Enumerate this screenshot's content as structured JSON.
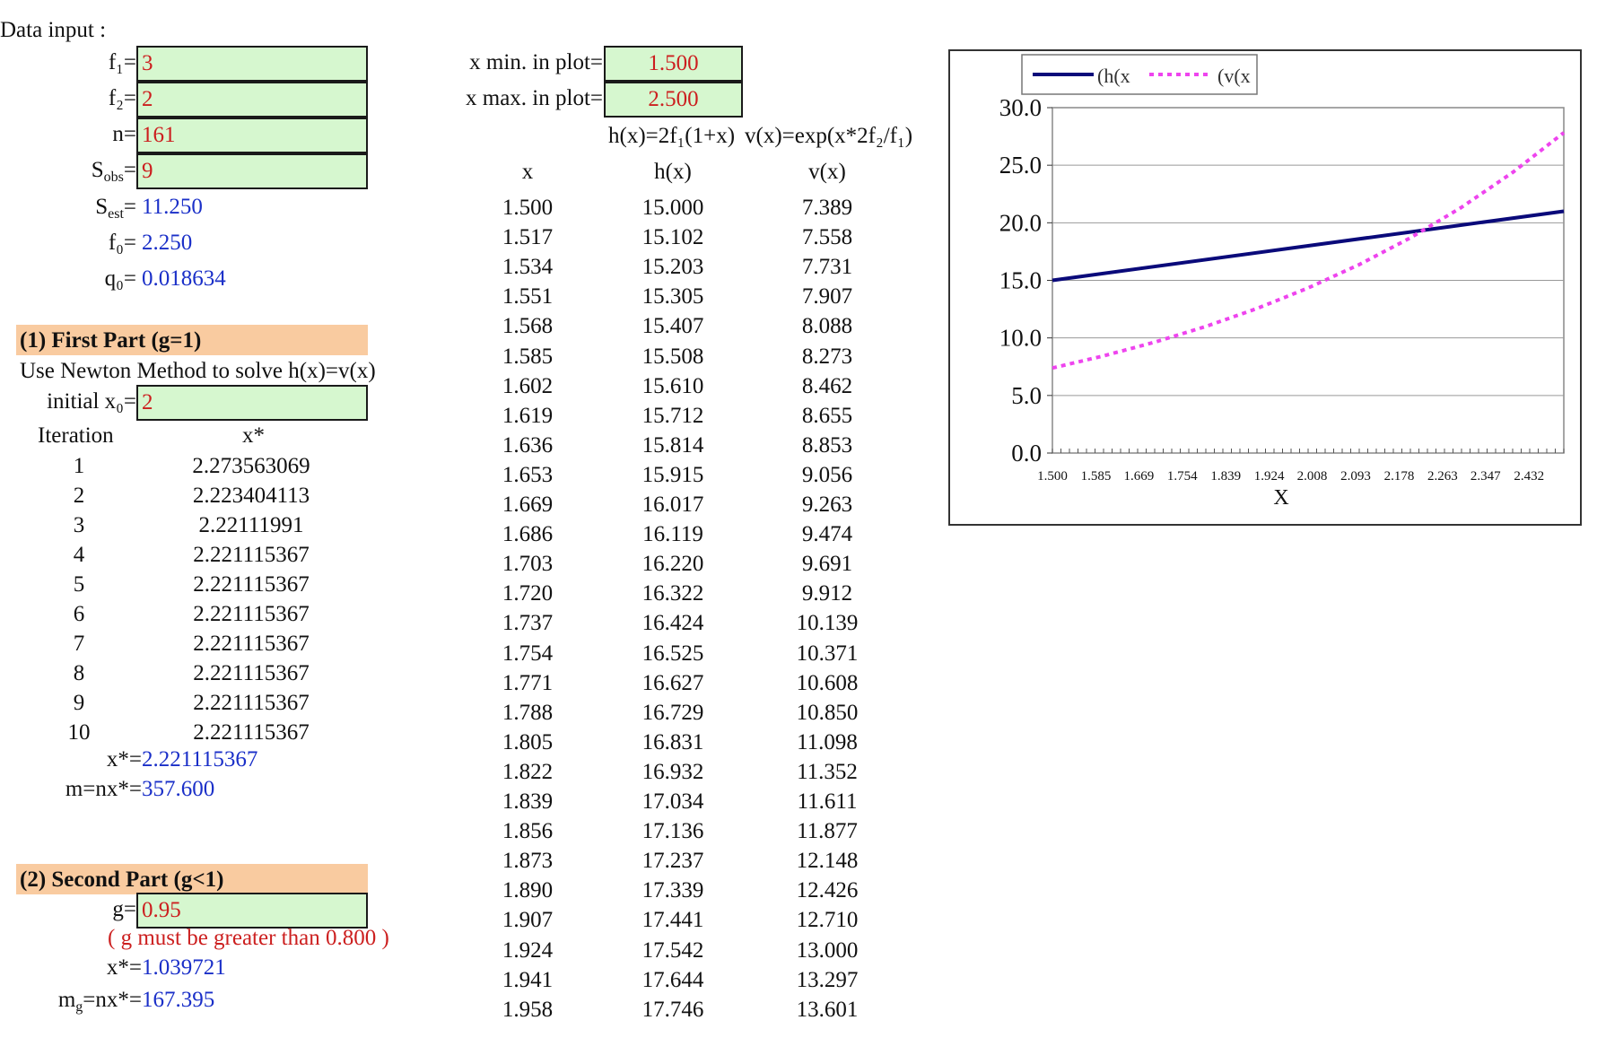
{
  "data_input": {
    "title": "Data input :",
    "f1_label": "f₁=",
    "f1_value": "3",
    "f2_label": "f₂=",
    "f2_value": "2",
    "n_label": "n=",
    "n_value": "161",
    "sobs_label_main": "S",
    "sobs_label_sub": "obs",
    "sobs_value": "9",
    "sest_label_main": "S",
    "sest_label_sub": "est",
    "sest_value": "11.250",
    "f0_label": "f₀=",
    "f0_value": "2.250",
    "q0_label": "q₀=",
    "q0_value": "0.018634"
  },
  "plot_range": {
    "xmin_label": "x min. in plot=",
    "xmin_value": "1.500",
    "xmax_label": "x max. in plot=",
    "xmax_value": "2.500",
    "formula_h": "h(x)=2f₁(1+x)",
    "formula_v": "v(x)=exp(x*2f₂/f₁)"
  },
  "part1": {
    "header": "(1) First Part (g=1)",
    "instruction": "Use Newton Method to solve h(x)=v(x)",
    "initial_label": "initial x₀=",
    "initial_value": "2",
    "col_iteration": "Iteration",
    "col_xstar": "x*",
    "iterations": [
      [
        "1",
        "2.273563069"
      ],
      [
        "2",
        "2.223404113"
      ],
      [
        "3",
        "2.22111991"
      ],
      [
        "4",
        "2.221115367"
      ],
      [
        "5",
        "2.221115367"
      ],
      [
        "6",
        "2.221115367"
      ],
      [
        "7",
        "2.221115367"
      ],
      [
        "8",
        "2.221115367"
      ],
      [
        "9",
        "2.221115367"
      ],
      [
        "10",
        "2.221115367"
      ]
    ],
    "xstar_label": "x*=",
    "xstar_value": "2.221115367",
    "m_label": "m=nx*=",
    "m_value": "357.600"
  },
  "part2": {
    "header": "(2) Second Part (g<1)",
    "g_label": "g=",
    "g_value": "0.95",
    "warning": "( g must be greater than 0.800 )",
    "xstar_label": "x*=",
    "xstar_value": "1.039721",
    "mg_label": "m",
    "mg_sub": "g",
    "mg_label_rest": "=nx*=",
    "mg_value": "167.395"
  },
  "table": {
    "headers": [
      "x",
      "h(x)",
      "v(x)"
    ],
    "rows": [
      [
        "1.500",
        "15.000",
        "7.389"
      ],
      [
        "1.517",
        "15.102",
        "7.558"
      ],
      [
        "1.534",
        "15.203",
        "7.731"
      ],
      [
        "1.551",
        "15.305",
        "7.907"
      ],
      [
        "1.568",
        "15.407",
        "8.088"
      ],
      [
        "1.585",
        "15.508",
        "8.273"
      ],
      [
        "1.602",
        "15.610",
        "8.462"
      ],
      [
        "1.619",
        "15.712",
        "8.655"
      ],
      [
        "1.636",
        "15.814",
        "8.853"
      ],
      [
        "1.653",
        "15.915",
        "9.056"
      ],
      [
        "1.669",
        "16.017",
        "9.263"
      ],
      [
        "1.686",
        "16.119",
        "9.474"
      ],
      [
        "1.703",
        "16.220",
        "9.691"
      ],
      [
        "1.720",
        "16.322",
        "9.912"
      ],
      [
        "1.737",
        "16.424",
        "10.139"
      ],
      [
        "1.754",
        "16.525",
        "10.371"
      ],
      [
        "1.771",
        "16.627",
        "10.608"
      ],
      [
        "1.788",
        "16.729",
        "10.850"
      ],
      [
        "1.805",
        "16.831",
        "11.098"
      ],
      [
        "1.822",
        "16.932",
        "11.352"
      ],
      [
        "1.839",
        "17.034",
        "11.611"
      ],
      [
        "1.856",
        "17.136",
        "11.877"
      ],
      [
        "1.873",
        "17.237",
        "12.148"
      ],
      [
        "1.890",
        "17.339",
        "12.426"
      ],
      [
        "1.907",
        "17.441",
        "12.710"
      ],
      [
        "1.924",
        "17.542",
        "13.000"
      ],
      [
        "1.941",
        "17.644",
        "13.297"
      ],
      [
        "1.958",
        "17.746",
        "13.601"
      ]
    ]
  },
  "chart_data": {
    "type": "line",
    "xlabel": "X",
    "ylabel": "",
    "ylim": [
      0,
      30
    ],
    "yticks": [
      "0.0",
      "5.0",
      "10.0",
      "15.0",
      "20.0",
      "25.0",
      "30.0"
    ],
    "xticks": [
      "1.500",
      "1.585",
      "1.669",
      "1.754",
      "1.839",
      "1.924",
      "2.008",
      "2.093",
      "2.178",
      "2.263",
      "2.347",
      "2.432"
    ],
    "xlim": [
      1.5,
      2.5
    ],
    "grid": "horizontal",
    "legend_position": "top",
    "series": [
      {
        "name": "(h(x",
        "color": "#0a0a7a",
        "style": "solid",
        "x": [
          1.5,
          2.5
        ],
        "values": [
          15.0,
          21.0
        ]
      },
      {
        "name": "(v(x",
        "color": "#ee44ee",
        "style": "dashed",
        "x": [
          1.5,
          1.6,
          1.7,
          1.8,
          1.9,
          2.0,
          2.1,
          2.2,
          2.3,
          2.4,
          2.5
        ],
        "values": [
          7.389,
          8.437,
          9.633,
          10.998,
          12.557,
          14.338,
          16.372,
          18.693,
          21.344,
          24.371,
          27.826
        ]
      }
    ]
  }
}
